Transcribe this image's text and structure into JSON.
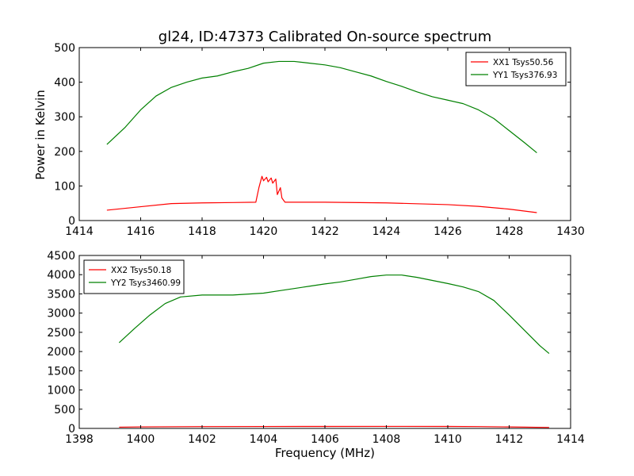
{
  "chart_data": [
    {
      "type": "line",
      "title": "gl24, ID:47373 Calibrated On-source spectrum",
      "xlabel": "",
      "ylabel": "Power in Kelvin",
      "xlim": [
        1414,
        1430
      ],
      "ylim": [
        0,
        500
      ],
      "xticks": [
        1414,
        1416,
        1418,
        1420,
        1422,
        1424,
        1426,
        1428,
        1430
      ],
      "yticks": [
        0,
        100,
        200,
        300,
        400,
        500
      ],
      "legend_position": "top-right",
      "grid": false,
      "series": [
        {
          "name": "XX1 Tsys50.56",
          "color": "#ff0000",
          "x": [
            1414.9,
            1416.0,
            1417.0,
            1418.0,
            1419.0,
            1419.75,
            1419.85,
            1419.95,
            1420.0,
            1420.1,
            1420.15,
            1420.25,
            1420.3,
            1420.4,
            1420.45,
            1420.55,
            1420.6,
            1420.7,
            1420.8,
            1422.0,
            1424.0,
            1426.0,
            1427.0,
            1428.0,
            1428.9
          ],
          "y": [
            30,
            40,
            49,
            51,
            52,
            53,
            95,
            128,
            115,
            125,
            112,
            123,
            108,
            120,
            75,
            95,
            65,
            53,
            53,
            53,
            51,
            46,
            41,
            33,
            23
          ]
        },
        {
          "name": "YY1 Tsys376.93",
          "color": "#008000",
          "x": [
            1414.9,
            1415.5,
            1416.0,
            1416.5,
            1417.0,
            1417.5,
            1418.0,
            1418.5,
            1419.0,
            1419.5,
            1420.0,
            1420.5,
            1421.0,
            1421.5,
            1422.0,
            1422.5,
            1423.0,
            1423.5,
            1424.0,
            1424.5,
            1425.0,
            1425.5,
            1426.0,
            1426.5,
            1427.0,
            1427.5,
            1428.0,
            1428.5,
            1428.9
          ],
          "y": [
            220,
            270,
            320,
            360,
            385,
            400,
            412,
            418,
            430,
            440,
            455,
            460,
            460,
            455,
            450,
            442,
            430,
            418,
            402,
            388,
            372,
            358,
            348,
            338,
            320,
            295,
            260,
            225,
            196
          ]
        }
      ]
    },
    {
      "type": "line",
      "title": "",
      "xlabel": "Frequency (MHz)",
      "ylabel": "",
      "xlim": [
        1398,
        1414
      ],
      "ylim": [
        0,
        4500
      ],
      "xticks": [
        1398,
        1400,
        1402,
        1404,
        1406,
        1408,
        1410,
        1412,
        1414
      ],
      "yticks": [
        0,
        500,
        1000,
        1500,
        2000,
        2500,
        3000,
        3500,
        4000,
        4500
      ],
      "legend_position": "top-left",
      "grid": false,
      "series": [
        {
          "name": "XX2 Tsys50.18",
          "color": "#ff0000",
          "x": [
            1399.3,
            1400.0,
            1402.0,
            1404.0,
            1406.0,
            1408.0,
            1410.0,
            1411.0,
            1412.0,
            1413.3
          ],
          "y": [
            32,
            40,
            48,
            50,
            52,
            53,
            52,
            48,
            38,
            25
          ]
        },
        {
          "name": "YY2 Tsys3460.99",
          "color": "#008000",
          "x": [
            1399.3,
            1399.8,
            1400.3,
            1400.8,
            1401.3,
            1402.0,
            1403.0,
            1404.0,
            1404.5,
            1405.0,
            1405.5,
            1406.0,
            1406.5,
            1407.0,
            1407.5,
            1408.0,
            1408.5,
            1409.0,
            1409.5,
            1410.0,
            1410.5,
            1411.0,
            1411.5,
            1412.0,
            1412.5,
            1413.0,
            1413.3
          ],
          "y": [
            2230,
            2600,
            2950,
            3250,
            3420,
            3470,
            3470,
            3520,
            3580,
            3640,
            3700,
            3760,
            3810,
            3880,
            3950,
            3990,
            3990,
            3930,
            3850,
            3770,
            3680,
            3560,
            3330,
            2950,
            2550,
            2150,
            1950
          ]
        }
      ]
    }
  ]
}
